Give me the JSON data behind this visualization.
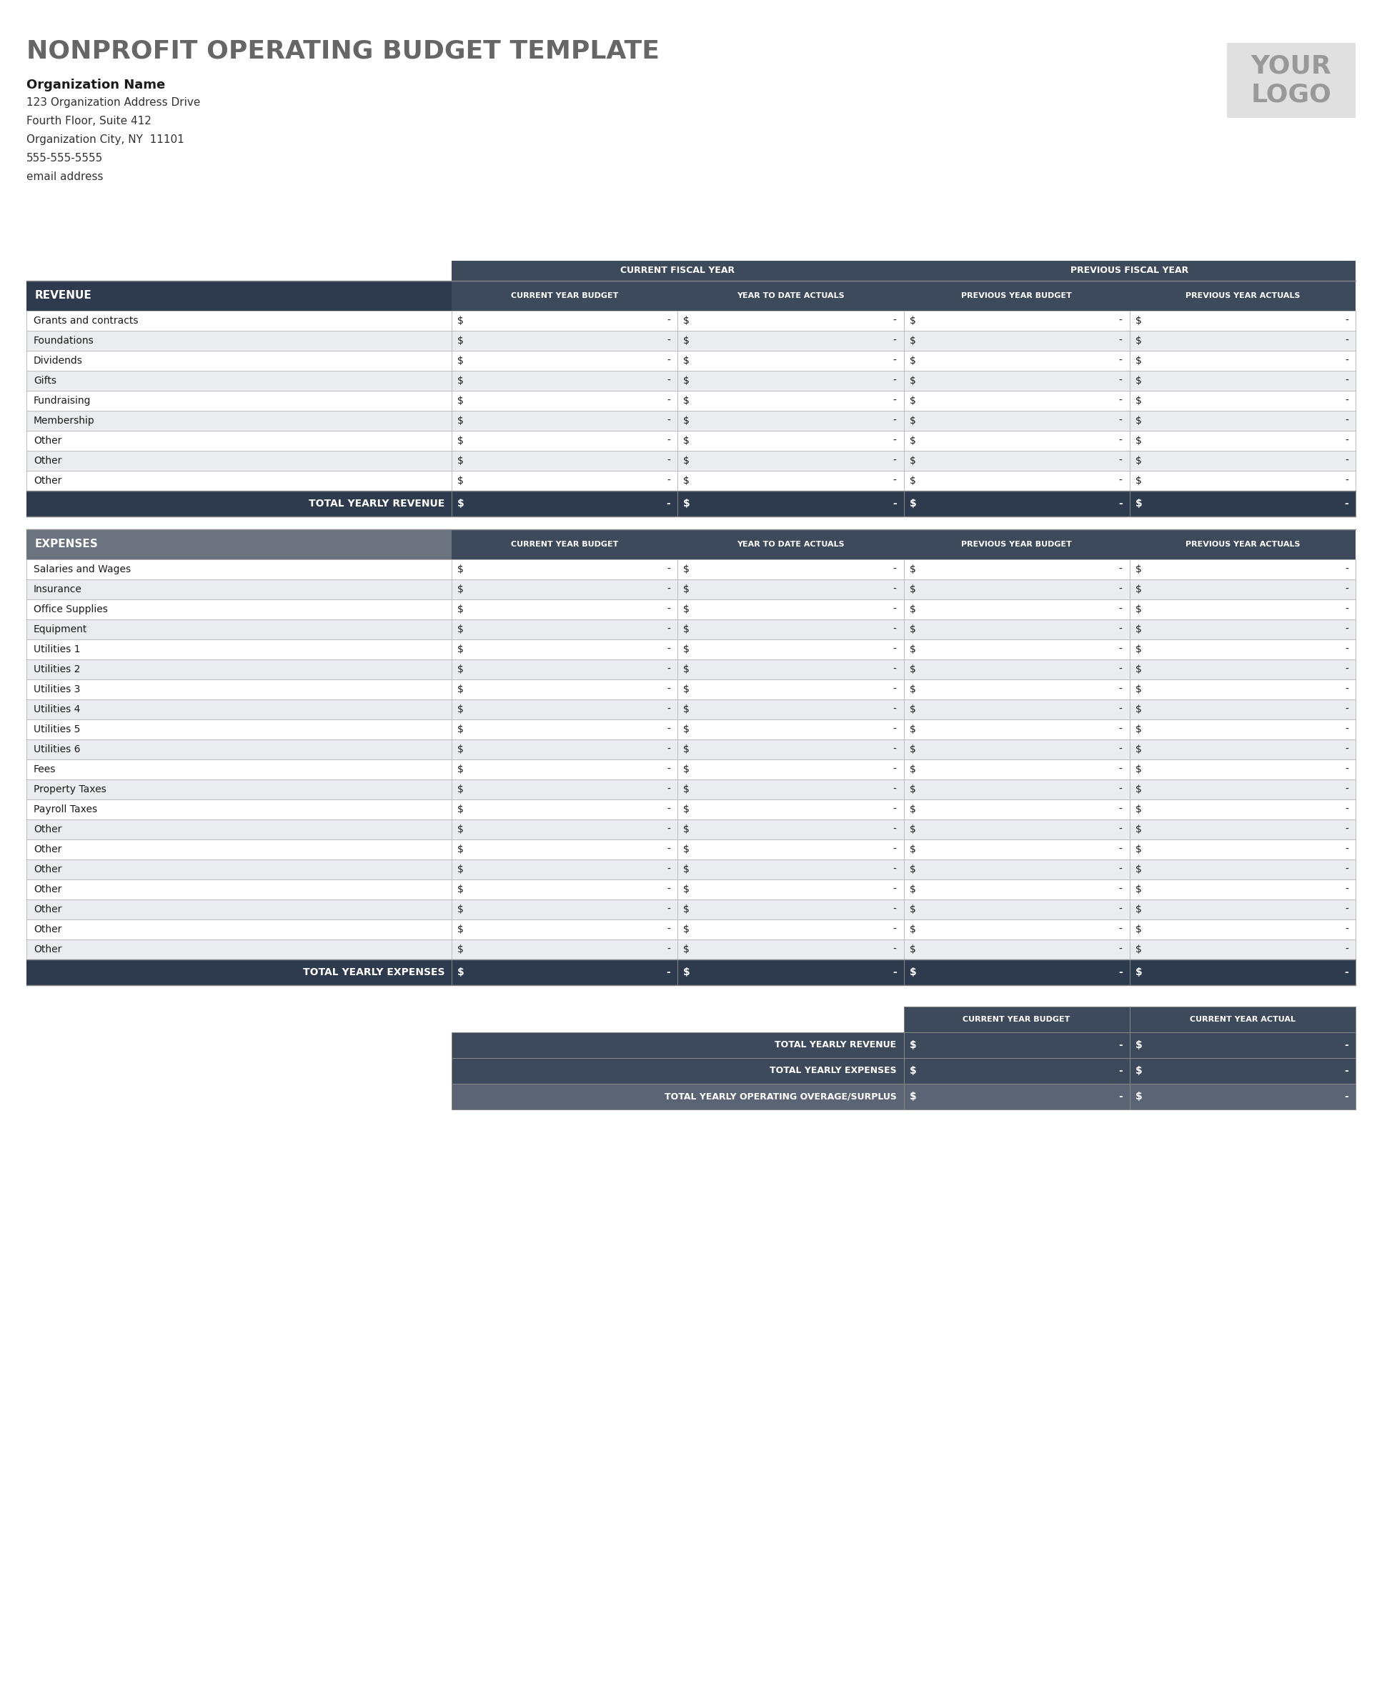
{
  "title": "NONPROFIT OPERATING BUDGET TEMPLATE",
  "org_name": "Organization Name",
  "address1": "123 Organization Address Drive",
  "address2": "Fourth Floor, Suite 412",
  "address3": "Organization City, NY  11101",
  "phone": "555-555-5555",
  "email": "email address",
  "logo_text": "YOUR\nLOGO",
  "title_color": "#666666",
  "org_name_color": "#1a1a1a",
  "address_color": "#333333",
  "header_dark_bg": "#2e3a4e",
  "header_expenses_bg": "#6b7280",
  "col_header_bg": "#3d4a5c",
  "row_white": "#ffffff",
  "row_light": "#eaecf0",
  "total_row_bg": "#2e3a4e",
  "logo_box_bg": "#e0e0e0",
  "logo_text_color": "#999999",
  "border_color": "#bbbbbb",
  "dark_border": "#888888",
  "revenue_rows": [
    "Grants and contracts",
    "Foundations",
    "Dividends",
    "Gifts",
    "Fundraising",
    "Membership",
    "Other",
    "Other",
    "Other"
  ],
  "expense_rows": [
    "Salaries and Wages",
    "Insurance",
    "Office Supplies",
    "Equipment",
    "Utilities 1",
    "Utilities 2",
    "Utilities 3",
    "Utilities 4",
    "Utilities 5",
    "Utilities 6",
    "Fees",
    "Property Taxes",
    "Payroll Taxes",
    "Other",
    "Other",
    "Other",
    "Other",
    "Other",
    "Other",
    "Other"
  ],
  "col_headers_main": [
    "CURRENT YEAR BUDGET",
    "YEAR TO DATE ACTUALS",
    "PREVIOUS YEAR BUDGET",
    "PREVIOUS YEAR ACTUALS"
  ],
  "fiscal_headers": [
    "CURRENT FISCAL YEAR",
    "PREVIOUS FISCAL YEAR"
  ],
  "summary_col_headers": [
    "CURRENT YEAR BUDGET",
    "CURRENT YEAR ACTUAL"
  ],
  "summary_rows": [
    "TOTAL YEARLY REVENUE",
    "TOTAL YEARLY EXPENSES",
    "TOTAL YEARLY OPERATING OVERAGE/SURPLUS"
  ],
  "summary_row_colors": [
    "#3d4a5c",
    "#3d4a5c",
    "#5a6475"
  ]
}
